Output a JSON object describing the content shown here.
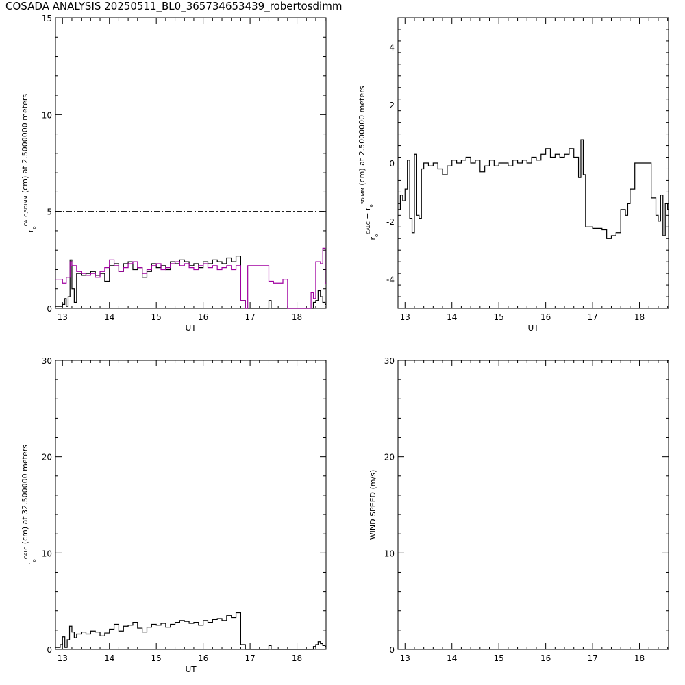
{
  "title": "COSADA ANALYSIS 20250511_BL0_365734653439_robertosdimm",
  "colors": {
    "axis": "#000000",
    "calc": "#000000",
    "sdimm": "#a000a0"
  },
  "chart_data": [
    {
      "id": "p1",
      "type": "line",
      "step": true,
      "xlabel": "UT",
      "ylabel": {
        "pre": "r",
        "sub": "o",
        "sup": "CALC,SDIMM",
        "post": "(cm)  at  2.5000000 meters"
      },
      "xlim": [
        12.85,
        18.62
      ],
      "ylim": [
        0,
        15
      ],
      "xticks": [
        13,
        14,
        15,
        16,
        17,
        18
      ],
      "yticks": [
        0,
        5,
        10,
        15
      ],
      "reference_line": 5,
      "series": [
        {
          "id": "calc",
          "color": "#000000",
          "x": [
            12.85,
            13.0,
            13.05,
            13.08,
            13.12,
            13.16,
            13.2,
            13.25,
            13.3,
            13.4,
            13.5,
            13.6,
            13.7,
            13.8,
            13.9,
            14.0,
            14.1,
            14.2,
            14.3,
            14.4,
            14.5,
            14.6,
            14.7,
            14.8,
            14.9,
            15.0,
            15.1,
            15.2,
            15.3,
            15.4,
            15.5,
            15.6,
            15.7,
            15.8,
            15.9,
            16.0,
            16.1,
            16.2,
            16.3,
            16.4,
            16.5,
            16.6,
            16.7,
            16.8,
            16.9,
            17.0,
            17.3,
            17.4,
            17.45,
            17.5,
            17.6,
            17.7,
            17.8,
            18.3,
            18.35,
            18.4,
            18.45,
            18.5,
            18.55,
            18.6
          ],
          "y": [
            0.1,
            0.2,
            0.5,
            0.1,
            0.6,
            2.5,
            1.0,
            0.3,
            1.8,
            1.7,
            1.8,
            1.9,
            1.7,
            1.8,
            1.4,
            2.2,
            2.3,
            1.9,
            2.3,
            2.4,
            2.0,
            2.1,
            1.6,
            1.9,
            2.3,
            2.1,
            2.2,
            2.0,
            2.4,
            2.3,
            2.5,
            2.4,
            2.2,
            2.3,
            2.1,
            2.4,
            2.3,
            2.5,
            2.4,
            2.3,
            2.6,
            2.4,
            2.7,
            0.4,
            0.0,
            0.0,
            0.0,
            0.4,
            0.0,
            0.0,
            0.0,
            0.0,
            0.0,
            0.0,
            0.3,
            0.4,
            0.9,
            0.6,
            0.3,
            0.2
          ]
        },
        {
          "id": "sdimm",
          "color": "#a000a0",
          "x": [
            12.85,
            13.0,
            13.08,
            13.16,
            13.2,
            13.3,
            13.4,
            13.5,
            13.6,
            13.7,
            13.8,
            13.9,
            14.0,
            14.1,
            14.2,
            14.3,
            14.4,
            14.5,
            14.6,
            14.7,
            14.8,
            14.9,
            15.0,
            15.1,
            15.2,
            15.3,
            15.4,
            15.5,
            15.6,
            15.7,
            15.8,
            15.9,
            16.0,
            16.1,
            16.2,
            16.3,
            16.4,
            16.5,
            16.6,
            16.7,
            16.8,
            16.9,
            16.95,
            17.3,
            17.4,
            17.5,
            17.7,
            17.8,
            18.25,
            18.3,
            18.35,
            18.4,
            18.5,
            18.55,
            18.6
          ],
          "y": [
            1.5,
            1.3,
            1.6,
            2.4,
            2.2,
            1.9,
            1.8,
            1.7,
            1.8,
            1.6,
            1.9,
            2.1,
            2.5,
            2.2,
            1.9,
            2.1,
            2.3,
            2.4,
            2.1,
            1.8,
            2.0,
            2.2,
            2.3,
            2.0,
            2.1,
            2.3,
            2.4,
            2.2,
            2.3,
            2.1,
            2.0,
            2.2,
            2.3,
            2.1,
            2.2,
            2.0,
            2.1,
            2.2,
            2.0,
            2.2,
            0.4,
            0.0,
            2.2,
            2.2,
            1.4,
            1.3,
            1.5,
            0.0,
            0.0,
            0.8,
            0.5,
            2.4,
            2.3,
            3.1,
            1.3
          ]
        }
      ]
    },
    {
      "id": "p2",
      "type": "line",
      "step": true,
      "xlabel": "UT",
      "ylabel": {
        "pre": "r",
        "sub": "o",
        "sup": "CALC",
        "mid": " − r",
        "sub2": "o",
        "sup2": "SDIMM",
        "post": "(cm)  at  2.5000000 meters"
      },
      "xlim": [
        12.85,
        18.62
      ],
      "ylim": [
        -5,
        5
      ],
      "xticks": [
        13,
        14,
        15,
        16,
        17,
        18
      ],
      "yticks": [
        -4,
        -2,
        0,
        2,
        4
      ],
      "series": [
        {
          "id": "diff",
          "color": "#000000",
          "x": [
            12.85,
            12.9,
            12.95,
            13.0,
            13.05,
            13.1,
            13.15,
            13.2,
            13.25,
            13.3,
            13.35,
            13.4,
            13.5,
            13.6,
            13.7,
            13.8,
            13.9,
            14.0,
            14.1,
            14.2,
            14.3,
            14.4,
            14.5,
            14.6,
            14.7,
            14.8,
            14.9,
            15.0,
            15.1,
            15.2,
            15.3,
            15.4,
            15.5,
            15.6,
            15.7,
            15.8,
            15.9,
            16.0,
            16.1,
            16.2,
            16.3,
            16.4,
            16.5,
            16.6,
            16.7,
            16.75,
            16.8,
            16.85,
            17.0,
            17.2,
            17.3,
            17.4,
            17.5,
            17.6,
            17.7,
            17.75,
            17.8,
            17.9,
            18.0,
            18.15,
            18.25,
            18.35,
            18.4,
            18.45,
            18.5,
            18.55,
            18.6
          ],
          "y": [
            -1.6,
            -1.1,
            -1.3,
            -0.9,
            0.1,
            -1.9,
            -2.4,
            0.3,
            -1.8,
            -1.9,
            -0.2,
            0.0,
            -0.1,
            0.0,
            -0.2,
            -0.4,
            -0.1,
            0.1,
            0.0,
            0.1,
            0.2,
            0.0,
            0.1,
            -0.3,
            -0.1,
            0.1,
            -0.1,
            0.0,
            0.0,
            -0.1,
            0.1,
            0.0,
            0.1,
            0.0,
            0.2,
            0.1,
            0.3,
            0.5,
            0.2,
            0.3,
            0.2,
            0.3,
            0.5,
            0.2,
            -0.5,
            0.8,
            -0.4,
            -2.2,
            -2.25,
            -2.3,
            -2.6,
            -2.5,
            -2.4,
            -1.6,
            -1.8,
            -1.4,
            -0.9,
            0.0,
            0.0,
            0.0,
            -1.2,
            -1.8,
            -2.0,
            -1.1,
            -2.5,
            -1.4,
            -1.6
          ]
        }
      ]
    },
    {
      "id": "p3",
      "type": "line",
      "step": true,
      "xlabel": "UT",
      "ylabel": {
        "pre": "r",
        "sub": "o",
        "sup": "CALC",
        "post": "(cm)  at  32.500000 meters"
      },
      "xlim": [
        12.85,
        18.62
      ],
      "ylim": [
        0,
        30
      ],
      "xticks": [
        13,
        14,
        15,
        16,
        17,
        18
      ],
      "yticks": [
        0,
        10,
        20,
        30
      ],
      "reference_line": 4.8,
      "series": [
        {
          "id": "calc",
          "color": "#000000",
          "x": [
            12.85,
            12.95,
            13.0,
            13.05,
            13.1,
            13.15,
            13.2,
            13.25,
            13.3,
            13.4,
            13.5,
            13.6,
            13.7,
            13.8,
            13.9,
            14.0,
            14.1,
            14.2,
            14.3,
            14.4,
            14.5,
            14.6,
            14.7,
            14.8,
            14.9,
            15.0,
            15.1,
            15.2,
            15.3,
            15.4,
            15.5,
            15.6,
            15.7,
            15.8,
            15.9,
            16.0,
            16.1,
            16.2,
            16.3,
            16.4,
            16.5,
            16.6,
            16.7,
            16.8,
            16.9,
            17.4,
            17.45,
            17.5,
            18.35,
            18.4,
            18.45,
            18.5,
            18.55,
            18.6
          ],
          "y": [
            0.2,
            0.5,
            1.3,
            0.2,
            1.0,
            2.4,
            1.8,
            1.2,
            1.6,
            1.8,
            1.6,
            1.9,
            1.8,
            1.4,
            1.7,
            2.1,
            2.6,
            1.9,
            2.4,
            2.5,
            2.8,
            2.2,
            1.8,
            2.3,
            2.6,
            2.5,
            2.7,
            2.3,
            2.6,
            2.8,
            3.0,
            2.9,
            2.7,
            2.8,
            2.5,
            3.0,
            2.8,
            3.1,
            3.2,
            3.0,
            3.5,
            3.3,
            3.8,
            0.5,
            0.0,
            0.4,
            0.0,
            0.0,
            0.3,
            0.5,
            0.8,
            0.6,
            0.4,
            0.3
          ]
        }
      ]
    },
    {
      "id": "p4",
      "type": "line",
      "step": true,
      "xlabel": "",
      "ylabel": {
        "pre": "WIND SPEED (m/s)"
      },
      "xlim": [
        12.85,
        18.62
      ],
      "ylim": [
        0,
        30
      ],
      "xticks": [
        13,
        14,
        15,
        16,
        17,
        18
      ],
      "yticks": [
        0,
        10,
        20,
        30
      ],
      "series": []
    }
  ]
}
